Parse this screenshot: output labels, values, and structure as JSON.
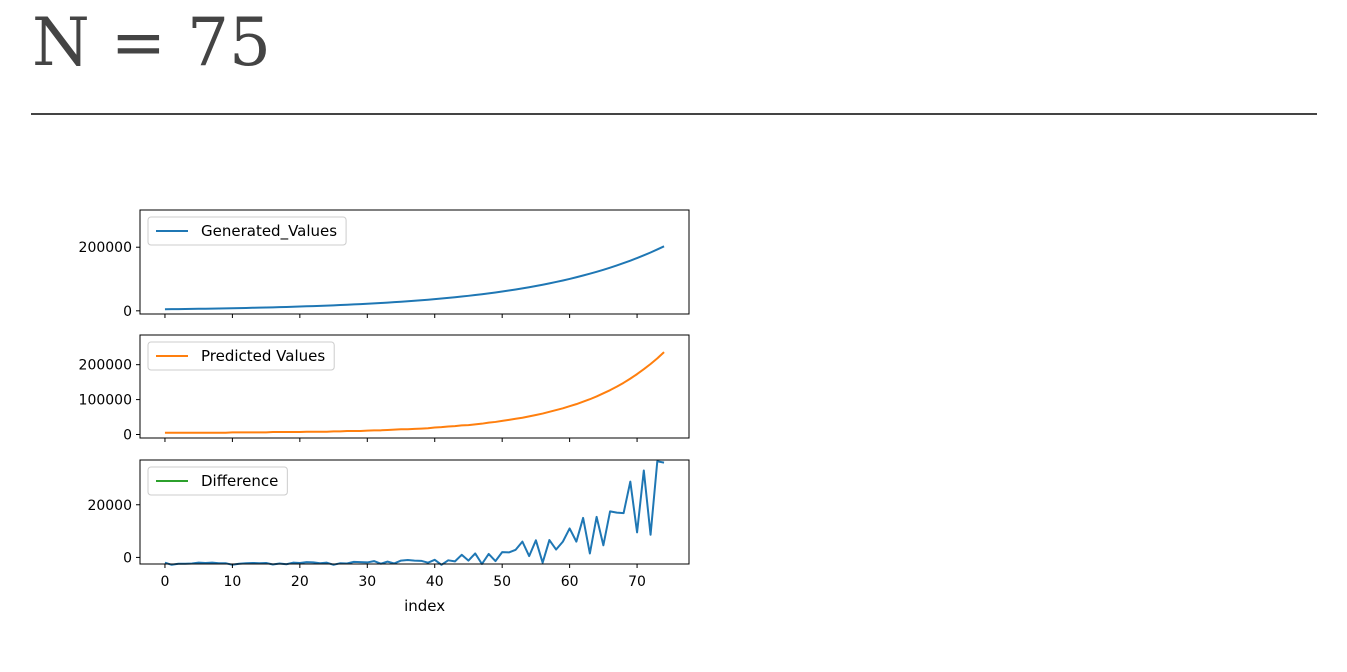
{
  "heading": "N = 75",
  "chart_data": {
    "type": "line",
    "xlabel": "index",
    "x_ticks": [
      0,
      10,
      20,
      30,
      40,
      50,
      60,
      70
    ],
    "xlim": [
      -3.7,
      77.7
    ],
    "panels": [
      {
        "series_name": "Generated_Values",
        "color": "#1f77b4",
        "legend_position": "top-left",
        "ylim": [
          -10000,
          317000
        ],
        "y_ticks": [
          0,
          200000
        ],
        "values": [
          5000,
          5200,
          5500,
          5800,
          6100,
          6400,
          6700,
          7000,
          7400,
          7800,
          8200,
          8600,
          9000,
          9500,
          10000,
          10500,
          11000,
          11600,
          12200,
          12800,
          13500,
          14200,
          14900,
          15700,
          16500,
          17300,
          18200,
          19200,
          20100,
          21200,
          22300,
          23400,
          24600,
          25800,
          27200,
          28500,
          30000,
          31600,
          33200,
          34900,
          36700,
          38600,
          40600,
          42700,
          44900,
          47200,
          49600,
          52200,
          54900,
          57700,
          60700,
          63800,
          67100,
          70600,
          74200,
          78100,
          82100,
          86300,
          90800,
          95400,
          100300,
          105500,
          111000,
          116700,
          122700,
          129000,
          135700,
          142700,
          150000,
          157800,
          165900,
          174400,
          183400,
          192900,
          202800
        ]
      },
      {
        "series_name": "Predicted Values",
        "color": "#ff7f0e",
        "legend_position": "top-left",
        "ylim": [
          -10000,
          285000
        ],
        "y_ticks": [
          0,
          100000,
          200000
        ],
        "values": [
          5000,
          5000,
          5000,
          5000,
          5000,
          5000,
          5000,
          5000,
          5000,
          5000,
          6000,
          6000,
          6000,
          6000,
          6000,
          6000,
          7000,
          7000,
          7000,
          7000,
          7000,
          8000,
          8000,
          8000,
          8000,
          9000,
          9000,
          10000,
          10000,
          10000,
          11000,
          12000,
          12000,
          13000,
          14000,
          15000,
          15000,
          16000,
          17000,
          18000,
          20000,
          21000,
          23000,
          24000,
          26000,
          27000,
          29000,
          31000,
          34000,
          36000,
          39000,
          42000,
          45000,
          48000,
          52000,
          56000,
          60000,
          65000,
          70000,
          75000,
          81000,
          87000,
          94000,
          101000,
          109000,
          118000,
          127000,
          137000,
          148000,
          160000,
          173000,
          187000,
          202000,
          218000,
          236000
        ]
      },
      {
        "series_name": "Difference",
        "color": "#2ca02c",
        "legend_position": "top-left",
        "ylim": [
          -2500,
          37000
        ],
        "y_ticks": [
          0,
          20000
        ],
        "values": [
          -2000,
          -2800,
          -2400,
          -2400,
          -2300,
          -2000,
          -2100,
          -2000,
          -2200,
          -2200,
          -2800,
          -2400,
          -2200,
          -2100,
          -2200,
          -2100,
          -2700,
          -2300,
          -2600,
          -2000,
          -2100,
          -1800,
          -1900,
          -2200,
          -2000,
          -2800,
          -2200,
          -2300,
          -1700,
          -1800,
          -1900,
          -1400,
          -2400,
          -1600,
          -2300,
          -1200,
          -1000,
          -1200,
          -1300,
          -2000,
          -900,
          -2800,
          -1100,
          -1500,
          1000,
          -1200,
          1500,
          -2500,
          1300,
          -1400,
          2000,
          1900,
          2900,
          6000,
          500,
          6500,
          -2000,
          6600,
          3000,
          6000,
          11000,
          6000,
          15000,
          1500,
          15400,
          4600,
          17500,
          17000,
          16800,
          28800,
          9500,
          33000,
          8600,
          36500,
          36000
        ]
      }
    ]
  }
}
